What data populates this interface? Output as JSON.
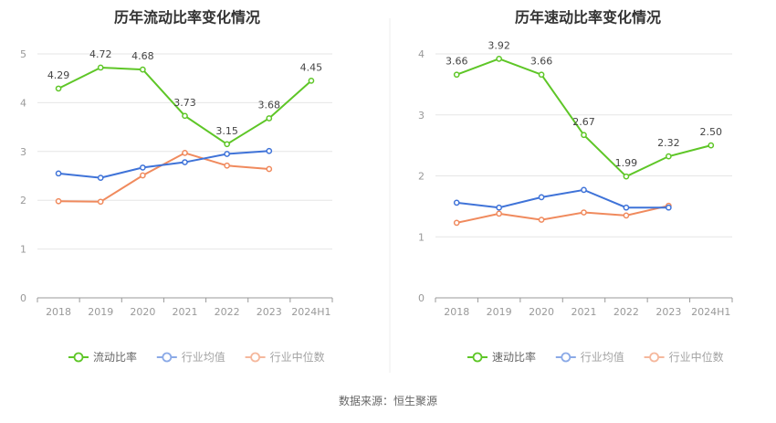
{
  "source_label": "数据来源：恒生聚源",
  "chart_data": [
    {
      "type": "line",
      "title": "历年流动比率变化情况",
      "categories": [
        "2018",
        "2019",
        "2020",
        "2021",
        "2022",
        "2023",
        "2024H1"
      ],
      "ylim": [
        0,
        5
      ],
      "yticks": [
        "0",
        "1",
        "2",
        "3",
        "4",
        "5"
      ],
      "grid": true,
      "legend_position": "bottom",
      "series": [
        {
          "name": "流动比率",
          "color": "#5ec627",
          "values": [
            4.29,
            4.72,
            4.68,
            3.73,
            3.15,
            3.68,
            4.45
          ],
          "labels": [
            "4.29",
            "4.72",
            "4.68",
            "3.73",
            "3.15",
            "3.68",
            "4.45"
          ]
        },
        {
          "name": "行业均值",
          "color": "#3f73d8",
          "values": [
            2.55,
            2.46,
            2.67,
            2.78,
            2.95,
            3.01,
            null
          ]
        },
        {
          "name": "行业中位数",
          "color": "#f08a5d",
          "values": [
            1.98,
            1.97,
            2.51,
            2.97,
            2.71,
            2.64,
            null
          ]
        }
      ]
    },
    {
      "type": "line",
      "title": "历年速动比率变化情况",
      "categories": [
        "2018",
        "2019",
        "2020",
        "2021",
        "2022",
        "2023",
        "2024H1"
      ],
      "ylim": [
        0,
        4
      ],
      "yticks": [
        "0",
        "1",
        "2",
        "3",
        "4"
      ],
      "grid": true,
      "legend_position": "bottom",
      "series": [
        {
          "name": "速动比率",
          "color": "#5ec627",
          "values": [
            3.66,
            3.92,
            3.66,
            2.67,
            1.99,
            2.32,
            2.5
          ],
          "labels": [
            "3.66",
            "3.92",
            "3.66",
            "2.67",
            "1.99",
            "2.32",
            "2.50"
          ]
        },
        {
          "name": "行业均值",
          "color": "#3f73d8",
          "values": [
            1.56,
            1.48,
            1.65,
            1.77,
            1.48,
            1.48,
            null
          ]
        },
        {
          "name": "行业中位数",
          "color": "#f08a5d",
          "values": [
            1.23,
            1.38,
            1.28,
            1.4,
            1.35,
            1.51,
            null
          ]
        }
      ]
    }
  ]
}
